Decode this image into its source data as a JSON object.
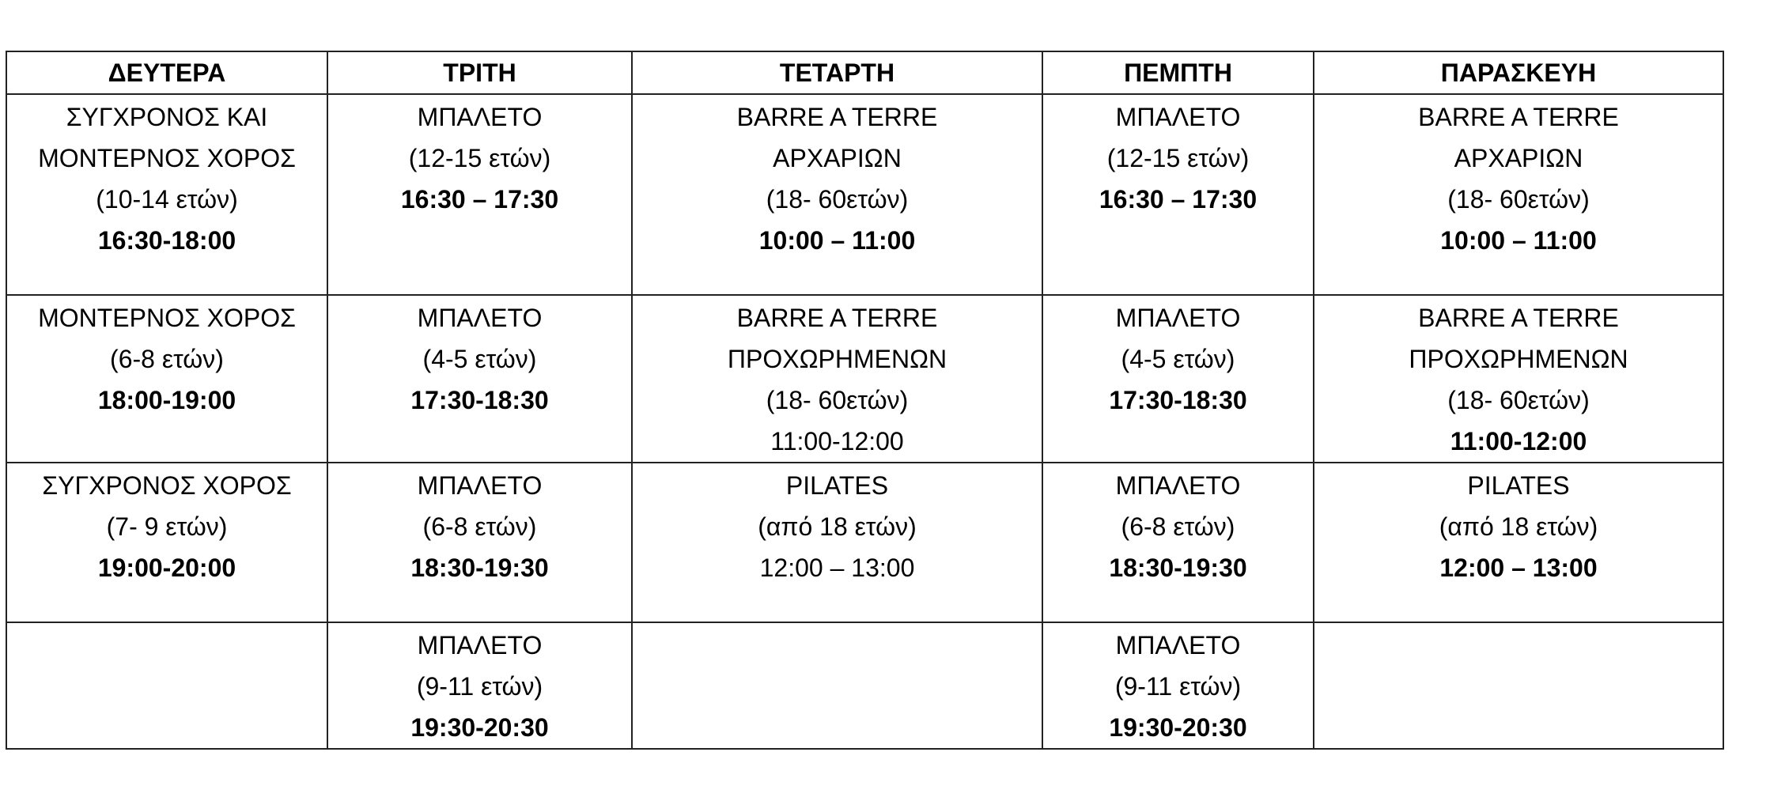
{
  "headers": [
    "ΔΕΥΤΕΡΑ",
    "ΤΡΙΤΗ",
    "ΤΕΤΑΡΤΗ",
    "ΠΕΜΠΤΗ",
    "ΠΑΡΑΣΚΕΥΗ"
  ],
  "rows": [
    [
      [
        {
          "t": "ΣΥΓΧΡΟΝΟΣ ΚΑΙ",
          "b": false
        },
        {
          "t": "ΜΟΝΤΕΡΝΟΣ ΧΟΡΟΣ",
          "b": false
        },
        {
          "t": "(10-14 ετών)",
          "b": false
        },
        {
          "t": "16:30-18:00",
          "b": true
        }
      ],
      [
        {
          "t": "ΜΠΑΛΕΤΟ",
          "b": false
        },
        {
          "t": "(12-15 ετών)",
          "b": false
        },
        {
          "t": "16:30 – 17:30",
          "b": true
        }
      ],
      [
        {
          "t": "BARRE A TERRE",
          "b": false
        },
        {
          "t": "ΑΡΧΑΡΙΩΝ",
          "b": false
        },
        {
          "t": "(18- 60ετών)",
          "b": false
        },
        {
          "t": "10:00 – 11:00",
          "b": true
        }
      ],
      [
        {
          "t": "ΜΠΑΛΕΤΟ",
          "b": false
        },
        {
          "t": "(12-15 ετών)",
          "b": false
        },
        {
          "t": "16:30 – 17:30",
          "b": true
        }
      ],
      [
        {
          "t": "BARRE A TERRE",
          "b": false
        },
        {
          "t": "ΑΡΧΑΡΙΩΝ",
          "b": false
        },
        {
          "t": "(18- 60ετών)",
          "b": false
        },
        {
          "t": "10:00 – 11:00",
          "b": true
        }
      ]
    ],
    [
      [
        {
          "t": "ΜΟΝΤΕΡΝΟΣ ΧΟΡΟΣ",
          "b": false
        },
        {
          "t": "(6-8 ετών)",
          "b": false
        },
        {
          "t": "18:00-19:00",
          "b": true
        }
      ],
      [
        {
          "t": "ΜΠΑΛΕΤΟ",
          "b": false
        },
        {
          "t": "(4-5 ετών)",
          "b": false
        },
        {
          "t": "17:30-18:30",
          "b": true
        }
      ],
      [
        {
          "t": "BARRE A TERRE",
          "b": false
        },
        {
          "t": "ΠΡΟΧΩΡΗΜΕΝΩΝ",
          "b": false
        },
        {
          "t": "(18- 60ετών)",
          "b": false
        },
        {
          "t": "11:00-12:00",
          "b": false
        }
      ],
      [
        {
          "t": "ΜΠΑΛΕΤΟ",
          "b": false
        },
        {
          "t": "(4-5 ετών)",
          "b": false
        },
        {
          "t": "17:30-18:30",
          "b": true
        }
      ],
      [
        {
          "t": "BARRE A TERRE",
          "b": false
        },
        {
          "t": "ΠΡΟΧΩΡΗΜΕΝΩΝ",
          "b": false
        },
        {
          "t": "(18- 60ετών)",
          "b": false
        },
        {
          "t": "11:00-12:00",
          "b": true
        }
      ]
    ],
    [
      [
        {
          "t": "ΣΥΓΧΡΟΝΟΣ ΧΟΡΟΣ",
          "b": false
        },
        {
          "t": "(7- 9 ετών)",
          "b": false
        },
        {
          "t": "19:00-20:00",
          "b": true
        }
      ],
      [
        {
          "t": "ΜΠΑΛΕΤΟ",
          "b": false
        },
        {
          "t": "(6-8 ετών)",
          "b": false
        },
        {
          "t": "18:30-19:30",
          "b": true
        }
      ],
      [
        {
          "t": "PILATES",
          "b": false
        },
        {
          "t": "(από 18 ετών)",
          "b": false
        },
        {
          "t": "12:00 – 13:00",
          "b": false
        }
      ],
      [
        {
          "t": "ΜΠΑΛΕΤΟ",
          "b": false
        },
        {
          "t": "(6-8 ετών)",
          "b": false
        },
        {
          "t": "18:30-19:30",
          "b": true
        }
      ],
      [
        {
          "t": "PILATES",
          "b": false
        },
        {
          "t": "(από 18 ετών)",
          "b": false
        },
        {
          "t": "12:00 – 13:00",
          "b": true
        }
      ]
    ],
    [
      [],
      [
        {
          "t": "ΜΠΑΛΕΤΟ",
          "b": false
        },
        {
          "t": "(9-11 ετών)",
          "b": false
        },
        {
          "t": "19:30-20:30",
          "b": true
        }
      ],
      [],
      [
        {
          "t": "ΜΠΑΛΕΤΟ",
          "b": false
        },
        {
          "t": "(9-11 ετών)",
          "b": false
        },
        {
          "t": "19:30-20:30",
          "b": true
        }
      ],
      []
    ]
  ]
}
